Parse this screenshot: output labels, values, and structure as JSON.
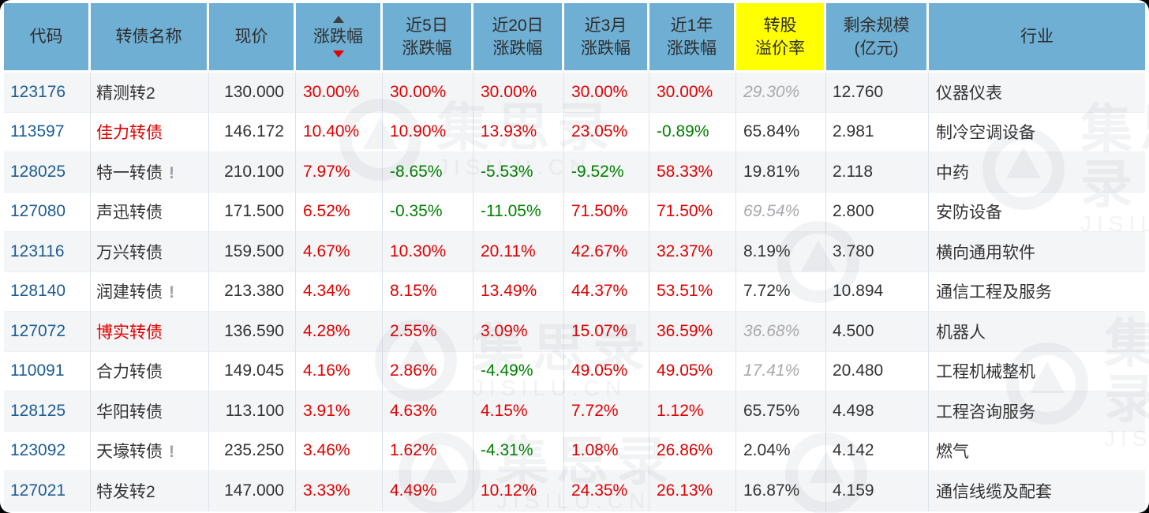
{
  "watermark": {
    "text": "集思录",
    "subtext": "JISILU.CN"
  },
  "colors": {
    "header_bg": "#6fafd3",
    "highlight_bg": "#ffff00",
    "link_blue": "#1d5d94",
    "up_red": "#e00000",
    "down_green": "#008000",
    "muted_gray": "#a9a9ad",
    "text_dark": "#333333",
    "stripe_gray": "#f4f5f7",
    "grid_line": "#dbe3ec"
  },
  "table": {
    "alert_mark": "!",
    "headers": [
      {
        "id": "code",
        "lines": [
          "代码"
        ]
      },
      {
        "id": "name",
        "lines": [
          "转债名称"
        ]
      },
      {
        "id": "price",
        "lines": [
          "现价"
        ]
      },
      {
        "id": "change",
        "lines": [
          "涨跌幅"
        ],
        "sorted": true
      },
      {
        "id": "change-5d",
        "lines": [
          "近5日",
          "涨跌幅"
        ]
      },
      {
        "id": "change-20d",
        "lines": [
          "近20日",
          "涨跌幅"
        ]
      },
      {
        "id": "change-3m",
        "lines": [
          "近3月",
          "涨跌幅"
        ]
      },
      {
        "id": "change-1y",
        "lines": [
          "近1年",
          "涨跌幅"
        ]
      },
      {
        "id": "premium",
        "lines": [
          "转股",
          "溢价率"
        ],
        "highlight": true
      },
      {
        "id": "size",
        "lines": [
          "剩余规模",
          "(亿元)"
        ]
      },
      {
        "id": "industry",
        "lines": [
          "行业"
        ]
      }
    ],
    "rows": [
      {
        "code": "123176",
        "name": "精测转2",
        "name_red": false,
        "alert": false,
        "price": "130.000",
        "chg": "30.00%",
        "chg_5d": "30.00%",
        "chg_20d": "30.00%",
        "chg_3m": "30.00%",
        "chg_1y": "30.00%",
        "premium": "29.30%",
        "premium_est": true,
        "size": "12.760",
        "industry": "仪器仪表"
      },
      {
        "code": "113597",
        "name": "佳力转债",
        "name_red": true,
        "alert": false,
        "price": "146.172",
        "chg": "10.40%",
        "chg_5d": "10.90%",
        "chg_20d": "13.93%",
        "chg_3m": "23.05%",
        "chg_1y": "-0.89%",
        "premium": "65.84%",
        "premium_est": false,
        "size": "2.981",
        "industry": "制冷空调设备"
      },
      {
        "code": "128025",
        "name": "特一转债",
        "name_red": false,
        "alert": true,
        "price": "210.100",
        "chg": "7.97%",
        "chg_5d": "-8.65%",
        "chg_20d": "-5.53%",
        "chg_3m": "-9.52%",
        "chg_1y": "58.33%",
        "premium": "19.81%",
        "premium_est": false,
        "size": "2.118",
        "industry": "中药"
      },
      {
        "code": "127080",
        "name": "声迅转债",
        "name_red": false,
        "alert": false,
        "price": "171.500",
        "chg": "6.52%",
        "chg_5d": "-0.35%",
        "chg_20d": "-11.05%",
        "chg_3m": "71.50%",
        "chg_1y": "71.50%",
        "premium": "69.54%",
        "premium_est": true,
        "size": "2.800",
        "industry": "安防设备"
      },
      {
        "code": "123116",
        "name": "万兴转债",
        "name_red": false,
        "alert": false,
        "price": "159.500",
        "chg": "4.67%",
        "chg_5d": "10.30%",
        "chg_20d": "20.11%",
        "chg_3m": "42.67%",
        "chg_1y": "32.37%",
        "premium": "8.19%",
        "premium_est": false,
        "size": "3.780",
        "industry": "横向通用软件"
      },
      {
        "code": "128140",
        "name": "润建转债",
        "name_red": false,
        "alert": true,
        "price": "213.380",
        "chg": "4.34%",
        "chg_5d": "8.15%",
        "chg_20d": "13.49%",
        "chg_3m": "44.37%",
        "chg_1y": "53.51%",
        "premium": "7.72%",
        "premium_est": false,
        "size": "10.894",
        "industry": "通信工程及服务"
      },
      {
        "code": "127072",
        "name": "博实转债",
        "name_red": true,
        "alert": false,
        "price": "136.590",
        "chg": "4.28%",
        "chg_5d": "2.55%",
        "chg_20d": "3.09%",
        "chg_3m": "15.07%",
        "chg_1y": "36.59%",
        "premium": "36.68%",
        "premium_est": true,
        "size": "4.500",
        "industry": "机器人"
      },
      {
        "code": "110091",
        "name": "合力转债",
        "name_red": false,
        "alert": false,
        "price": "149.045",
        "chg": "4.16%",
        "chg_5d": "2.86%",
        "chg_20d": "-4.49%",
        "chg_3m": "49.05%",
        "chg_1y": "49.05%",
        "premium": "17.41%",
        "premium_est": true,
        "size": "20.480",
        "industry": "工程机械整机"
      },
      {
        "code": "128125",
        "name": "华阳转债",
        "name_red": false,
        "alert": false,
        "price": "113.100",
        "chg": "3.91%",
        "chg_5d": "4.63%",
        "chg_20d": "4.15%",
        "chg_3m": "7.72%",
        "chg_1y": "1.12%",
        "premium": "65.75%",
        "premium_est": false,
        "size": "4.498",
        "industry": "工程咨询服务"
      },
      {
        "code": "123092",
        "name": "天壕转债",
        "name_red": false,
        "alert": true,
        "price": "235.250",
        "chg": "3.46%",
        "chg_5d": "1.62%",
        "chg_20d": "-4.31%",
        "chg_3m": "1.08%",
        "chg_1y": "26.86%",
        "premium": "2.04%",
        "premium_est": false,
        "size": "4.142",
        "industry": "燃气"
      },
      {
        "code": "127021",
        "name": "特发转2",
        "name_red": false,
        "alert": false,
        "price": "147.000",
        "chg": "3.33%",
        "chg_5d": "4.49%",
        "chg_20d": "10.12%",
        "chg_3m": "24.35%",
        "chg_1y": "26.13%",
        "premium": "16.87%",
        "premium_est": false,
        "size": "4.159",
        "industry": "通信线缆及配套"
      }
    ]
  }
}
